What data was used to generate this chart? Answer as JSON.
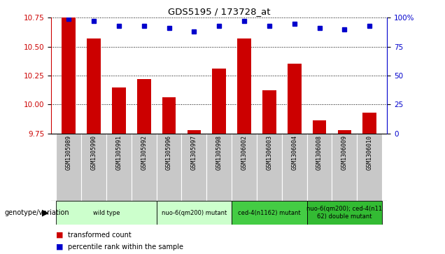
{
  "title": "GDS5195 / 173728_at",
  "samples": [
    "GSM1305989",
    "GSM1305990",
    "GSM1305991",
    "GSM1305992",
    "GSM1305996",
    "GSM1305997",
    "GSM1305998",
    "GSM1306002",
    "GSM1306003",
    "GSM1306004",
    "GSM1306008",
    "GSM1306009",
    "GSM1306010"
  ],
  "bar_values": [
    10.75,
    10.57,
    10.15,
    10.22,
    10.06,
    9.78,
    10.31,
    10.57,
    10.12,
    10.35,
    9.86,
    9.78,
    9.93
  ],
  "dot_values": [
    99,
    97,
    93,
    93,
    91,
    88,
    93,
    97,
    93,
    95,
    91,
    90,
    93
  ],
  "bar_color": "#cc0000",
  "dot_color": "#0000cc",
  "ylim_left": [
    9.75,
    10.75
  ],
  "ylim_right": [
    0,
    100
  ],
  "yticks_left": [
    9.75,
    10.0,
    10.25,
    10.5,
    10.75
  ],
  "yticks_right": [
    0,
    25,
    50,
    75,
    100
  ],
  "groups": [
    {
      "label": "wild type",
      "start": 0,
      "end": 3,
      "color": "#ccffcc"
    },
    {
      "label": "nuo-6(qm200) mutant",
      "start": 4,
      "end": 6,
      "color": "#ccffcc"
    },
    {
      "label": "ced-4(n1162) mutant",
      "start": 7,
      "end": 9,
      "color": "#44cc44"
    },
    {
      "label": "nuo-6(qm200); ced-4(n11\n62) double mutant",
      "start": 10,
      "end": 12,
      "color": "#33bb33"
    }
  ],
  "genotype_label": "genotype/variation",
  "legend_bar": "transformed count",
  "legend_dot": "percentile rank within the sample",
  "bar_width": 0.55,
  "cell_color": "#c8c8c8",
  "plot_bg_color": "#ffffff"
}
